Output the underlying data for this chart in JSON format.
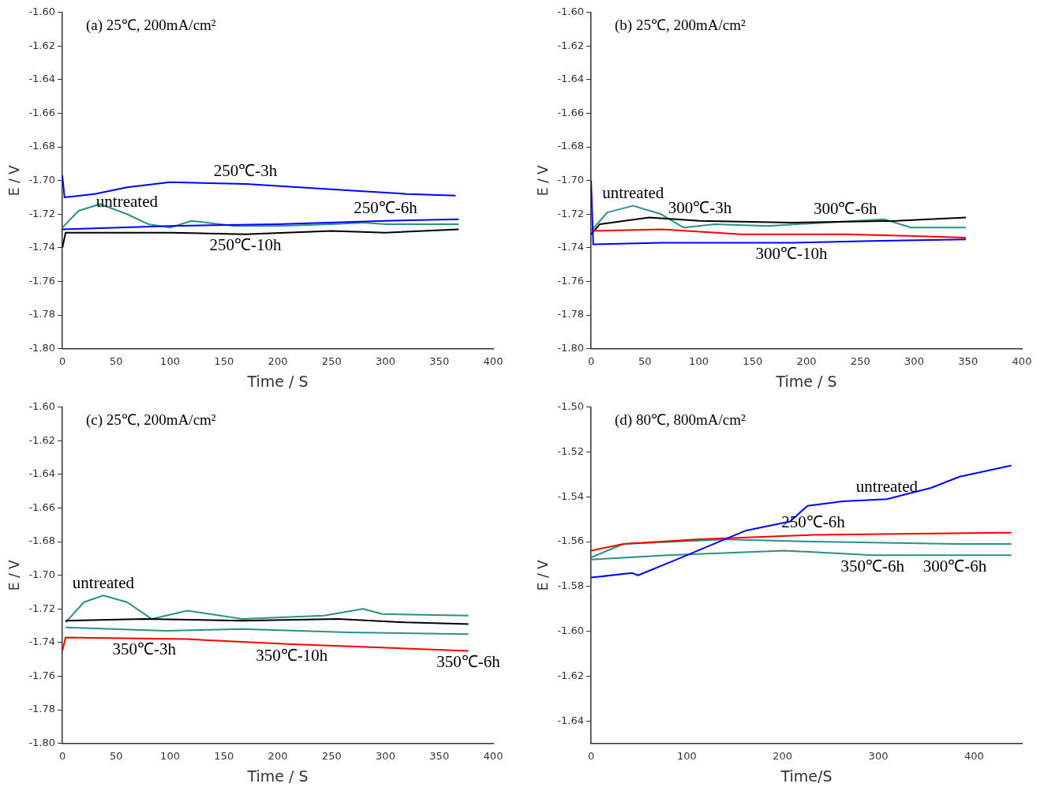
{
  "chart_data": [
    {
      "type": "line",
      "title": "(a) 25℃, 200mA/cm²",
      "xlabel": "Time / S",
      "ylabel": "E / V",
      "xlim": [
        0,
        400
      ],
      "xticks": [
        0,
        50,
        100,
        150,
        200,
        250,
        300,
        350,
        400
      ],
      "ylim": [
        -1.8,
        -1.6
      ],
      "yticks": [
        {
          "value": -1.6,
          "label": "-1.60"
        },
        {
          "value": -1.62,
          "label": "-1.62"
        },
        {
          "value": -1.64,
          "label": "-1.64"
        },
        {
          "value": -1.66,
          "label": "-1.66"
        },
        {
          "value": -1.68,
          "label": "-1.68"
        },
        {
          "value": -1.7,
          "label": "-1.70"
        },
        {
          "value": -1.72,
          "label": "-1.72"
        },
        {
          "value": -1.74,
          "label": "-1.74"
        },
        {
          "value": -1.76,
          "label": "-1.76"
        },
        {
          "value": -1.78,
          "label": "-1.78"
        },
        {
          "value": -1.8,
          "label": "-1.80"
        }
      ],
      "grid": false,
      "legend": false,
      "line_style": "solid",
      "marker": "none",
      "series": [
        {
          "color": "#0000ff",
          "x": [
            0,
            2,
            30,
            60,
            100,
            170,
            220,
            270,
            320,
            365
          ],
          "values": [
            -1.697,
            -1.71,
            -1.708,
            -1.704,
            -1.701,
            -1.702,
            -1.704,
            -1.706,
            -1.708,
            -1.709
          ]
        },
        {
          "color": "#0000ff",
          "x": [
            0,
            100,
            200,
            300,
            368
          ],
          "values": [
            -1.729,
            -1.727,
            -1.726,
            -1.724,
            -1.723
          ]
        },
        {
          "color": "#000000",
          "x": [
            0,
            3,
            50,
            100,
            170,
            250,
            300,
            368
          ],
          "values": [
            -1.74,
            -1.731,
            -1.731,
            -1.731,
            -1.732,
            -1.73,
            -1.731,
            -1.729
          ]
        },
        {
          "color": "#2a9188",
          "x": [
            0,
            15,
            35,
            60,
            80,
            100,
            120,
            160,
            200,
            250,
            280,
            300,
            368
          ],
          "values": [
            -1.728,
            -1.718,
            -1.714,
            -1.72,
            -1.726,
            -1.728,
            -1.724,
            -1.727,
            -1.727,
            -1.726,
            -1.725,
            -1.726,
            -1.726
          ]
        }
      ],
      "annotations": [
        {
          "text": "250℃-3h",
          "x": 170,
          "y": -1.702
        },
        {
          "text": "untreated",
          "x": 60,
          "y": -1.72
        },
        {
          "text": "250℃-6h",
          "x": 300,
          "y": -1.724
        },
        {
          "text": "250℃-10h",
          "x": 170,
          "y": -1.732
        }
      ]
    },
    {
      "type": "line",
      "title": "(b) 25℃, 200mA/cm²",
      "xlabel": "Time / S",
      "ylabel": "E / V",
      "xlim": [
        0,
        400
      ],
      "xticks": [
        0,
        50,
        100,
        150,
        200,
        250,
        300,
        350,
        400
      ],
      "ylim": [
        -1.8,
        -1.6
      ],
      "yticks": [
        {
          "value": -1.6,
          "label": "-1.60"
        },
        {
          "value": -1.62,
          "label": "-1.62"
        },
        {
          "value": -1.64,
          "label": "-1.64"
        },
        {
          "value": -1.66,
          "label": "-1.66"
        },
        {
          "value": -1.68,
          "label": "-1.68"
        },
        {
          "value": -1.7,
          "label": "-1.70"
        },
        {
          "value": -1.72,
          "label": "-1.72"
        },
        {
          "value": -1.74,
          "label": "-1.74"
        },
        {
          "value": -1.76,
          "label": "-1.76"
        },
        {
          "value": -1.78,
          "label": "-1.78"
        },
        {
          "value": -1.8,
          "label": "-1.80"
        }
      ],
      "grid": false,
      "legend": false,
      "line_style": "solid",
      "marker": "none",
      "series": [
        {
          "color": "#0000ff",
          "x": [
            0,
            2,
            66,
            186,
            260,
            348
          ],
          "values": [
            -1.7,
            -1.738,
            -1.737,
            -1.737,
            -1.736,
            -1.735
          ]
        },
        {
          "color": "#ff0000",
          "x": [
            1,
            66,
            139,
            236,
            300,
            348
          ],
          "values": [
            -1.73,
            -1.729,
            -1.732,
            -1.732,
            -1.733,
            -1.734
          ]
        },
        {
          "color": "#000000",
          "x": [
            0,
            8,
            54,
            101,
            186,
            283,
            348
          ],
          "values": [
            -1.732,
            -1.726,
            -1.722,
            -1.724,
            -1.725,
            -1.724,
            -1.722
          ]
        },
        {
          "color": "#2a9188",
          "x": [
            0,
            15,
            39,
            65,
            86,
            115,
            164,
            272,
            297,
            348
          ],
          "values": [
            -1.73,
            -1.719,
            -1.715,
            -1.72,
            -1.728,
            -1.726,
            -1.727,
            -1.723,
            -1.728,
            -1.728
          ]
        }
      ],
      "annotations": [
        {
          "text": "untreated",
          "x": 39,
          "y": -1.715
        },
        {
          "text": "300℃-3h",
          "x": 101,
          "y": -1.724
        },
        {
          "text": "300℃-6h",
          "x": 236,
          "y": -1.732
        },
        {
          "text": "300℃-10h",
          "x": 186,
          "y": -1.737
        }
      ]
    },
    {
      "type": "line",
      "title": "(c) 25℃, 200mA/cm²",
      "xlabel": "Time / S",
      "ylabel": "E / V",
      "xlim": [
        0,
        400
      ],
      "xticks": [
        0,
        50,
        100,
        150,
        200,
        250,
        300,
        350,
        400
      ],
      "ylim": [
        -1.8,
        -1.6
      ],
      "yticks": [
        {
          "value": -1.6,
          "label": "-1.60"
        },
        {
          "value": -1.62,
          "label": "-1.62"
        },
        {
          "value": -1.64,
          "label": "-1.64"
        },
        {
          "value": -1.66,
          "label": "-1.66"
        },
        {
          "value": -1.68,
          "label": "-1.68"
        },
        {
          "value": -1.7,
          "label": "-1.70"
        },
        {
          "value": -1.72,
          "label": "-1.72"
        },
        {
          "value": -1.74,
          "label": "-1.74"
        },
        {
          "value": -1.76,
          "label": "-1.76"
        },
        {
          "value": -1.78,
          "label": "-1.78"
        },
        {
          "value": -1.8,
          "label": "-1.80"
        }
      ],
      "grid": false,
      "legend": false,
      "line_style": "solid",
      "marker": "none",
      "series": [
        {
          "color": "#ff0000",
          "x": [
            0,
            3,
            116,
            213,
            297,
            377
          ],
          "values": [
            -1.745,
            -1.737,
            -1.738,
            -1.741,
            -1.743,
            -1.745
          ]
        },
        {
          "color": "#2a9188",
          "x": [
            3,
            96,
            167,
            265,
            377
          ],
          "values": [
            -1.731,
            -1.733,
            -1.732,
            -1.734,
            -1.735
          ]
        },
        {
          "color": "#000000",
          "x": [
            3,
            76,
            167,
            256,
            318,
            377
          ],
          "values": [
            -1.727,
            -1.726,
            -1.727,
            -1.726,
            -1.728,
            -1.729
          ]
        },
        {
          "color": "#2a9188",
          "x": [
            3,
            20,
            38,
            60,
            83,
            116,
            167,
            243,
            279,
            297,
            377
          ],
          "values": [
            -1.728,
            -1.716,
            -1.712,
            -1.716,
            -1.726,
            -1.721,
            -1.726,
            -1.724,
            -1.72,
            -1.723,
            -1.724
          ]
        }
      ],
      "annotations": [
        {
          "text": "untreated",
          "x": 38,
          "y": -1.712
        },
        {
          "text": "350℃-3h",
          "x": 76,
          "y": -1.726
        },
        {
          "text": "350℃-6h",
          "x": 377,
          "y": -1.735
        },
        {
          "text": "350℃-10h",
          "x": 213,
          "y": -1.741
        }
      ]
    },
    {
      "type": "line",
      "title": "(d) 80℃, 800mA/cm²",
      "xlabel": "Time/S",
      "ylabel": "E / V",
      "xlim": [
        0,
        450
      ],
      "xticks": [
        0,
        100,
        200,
        300,
        400
      ],
      "ylim": [
        -1.65,
        -1.5
      ],
      "yticks": [
        {
          "value": -1.5,
          "label": "-1.50"
        },
        {
          "value": -1.52,
          "label": "-1.52"
        },
        {
          "value": -1.54,
          "label": "-1.54"
        },
        {
          "value": -1.56,
          "label": "-1.56"
        },
        {
          "value": -1.58,
          "label": "-1.58"
        },
        {
          "value": -1.6,
          "label": "-1.60"
        },
        {
          "value": -1.62,
          "label": "-1.62"
        },
        {
          "value": -1.64,
          "label": "-1.64"
        }
      ],
      "grid": false,
      "legend": false,
      "line_style": "solid",
      "marker": "none",
      "series": [
        {
          "color": "#0000ff",
          "x": [
            0,
            43,
            49,
            89,
            117,
            162,
            208,
            226,
            263,
            309,
            355,
            385,
            439
          ],
          "values": [
            -1.576,
            -1.574,
            -1.575,
            -1.568,
            -1.563,
            -1.555,
            -1.551,
            -1.544,
            -1.542,
            -1.541,
            -1.536,
            -1.531,
            -1.526
          ]
        },
        {
          "color": "#ff0000",
          "x": [
            0,
            34,
            110,
            232,
            439
          ],
          "values": [
            -1.564,
            -1.561,
            -1.559,
            -1.557,
            -1.556
          ]
        },
        {
          "color": "#2a9188",
          "x": [
            0,
            34,
            140,
            232,
            380,
            439
          ],
          "values": [
            -1.567,
            -1.561,
            -1.559,
            -1.56,
            -1.561,
            -1.561
          ]
        },
        {
          "color": "#2a9188",
          "x": [
            0,
            80,
            202,
            294,
            439
          ],
          "values": [
            -1.568,
            -1.566,
            -1.564,
            -1.566,
            -1.566
          ]
        }
      ],
      "annotations": [
        {
          "text": "untreated",
          "x": 309,
          "y": -1.541
        },
        {
          "text": "250℃-6h",
          "x": 232,
          "y": -1.557
        },
        {
          "text": "300℃-6h",
          "x": 380,
          "y": -1.561
        },
        {
          "text": "350℃-6h",
          "x": 294,
          "y": -1.566
        }
      ]
    }
  ]
}
